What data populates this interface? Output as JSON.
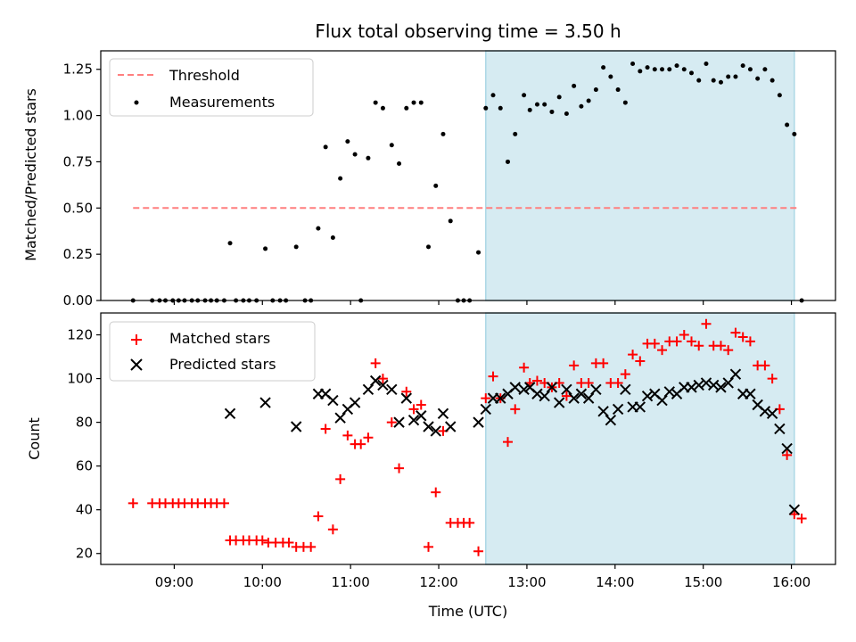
{
  "title": "Flux total observing time = 3.50 h",
  "chart_data": [
    {
      "type": "scatter",
      "ylabel": "Matched/Predicted stars",
      "ylim": [
        0,
        1.35
      ],
      "yticks": [
        "0.00",
        "0.25",
        "0.50",
        "0.75",
        "1.00",
        "1.25"
      ],
      "legend_position": "top-left",
      "threshold": {
        "name": "Threshold",
        "value": 0.5,
        "x_start": "08:32",
        "x_end": "16:05",
        "color": "#ff7f7f"
      },
      "measurements": {
        "name": "Measurements",
        "color": "#000000",
        "points": [
          [
            "08:32",
            0.0
          ],
          [
            "08:45",
            0.0
          ],
          [
            "08:50",
            0.0
          ],
          [
            "08:54",
            0.0
          ],
          [
            "08:59",
            0.0
          ],
          [
            "09:03",
            0.0
          ],
          [
            "09:07",
            0.0
          ],
          [
            "09:12",
            0.0
          ],
          [
            "09:16",
            0.0
          ],
          [
            "09:21",
            0.0
          ],
          [
            "09:25",
            0.0
          ],
          [
            "09:29",
            0.0
          ],
          [
            "09:34",
            0.0
          ],
          [
            "09:38",
            0.31
          ],
          [
            "09:42",
            0.0
          ],
          [
            "09:47",
            0.0
          ],
          [
            "09:51",
            0.0
          ],
          [
            "09:56",
            0.0
          ],
          [
            "10:02",
            0.28
          ],
          [
            "10:07",
            0.0
          ],
          [
            "10:12",
            0.0
          ],
          [
            "10:16",
            0.0
          ],
          [
            "10:23",
            0.29
          ],
          [
            "10:29",
            0.0
          ],
          [
            "10:33",
            0.0
          ],
          [
            "10:38",
            0.39
          ],
          [
            "10:43",
            0.83
          ],
          [
            "10:48",
            0.34
          ],
          [
            "10:53",
            0.66
          ],
          [
            "10:58",
            0.86
          ],
          [
            "11:03",
            0.79
          ],
          [
            "11:07",
            0.0
          ],
          [
            "11:12",
            0.77
          ],
          [
            "11:17",
            1.07
          ],
          [
            "11:22",
            1.04
          ],
          [
            "11:28",
            0.84
          ],
          [
            "11:33",
            0.74
          ],
          [
            "11:38",
            1.04
          ],
          [
            "11:43",
            1.07
          ],
          [
            "11:48",
            1.07
          ],
          [
            "11:53",
            0.29
          ],
          [
            "11:58",
            0.62
          ],
          [
            "12:03",
            0.9
          ],
          [
            "12:08",
            0.43
          ],
          [
            "12:13",
            0.0
          ],
          [
            "12:17",
            0.0
          ],
          [
            "12:21",
            0.0
          ],
          [
            "12:27",
            0.26
          ],
          [
            "12:32",
            1.04
          ],
          [
            "12:37",
            1.11
          ],
          [
            "12:42",
            1.04
          ],
          [
            "12:47",
            0.75
          ],
          [
            "12:52",
            0.9
          ],
          [
            "12:58",
            1.11
          ],
          [
            "13:02",
            1.03
          ],
          [
            "13:07",
            1.06
          ],
          [
            "13:12",
            1.06
          ],
          [
            "13:17",
            1.02
          ],
          [
            "13:22",
            1.1
          ],
          [
            "13:27",
            1.01
          ],
          [
            "13:32",
            1.16
          ],
          [
            "13:37",
            1.05
          ],
          [
            "13:42",
            1.08
          ],
          [
            "13:47",
            1.14
          ],
          [
            "13:52",
            1.26
          ],
          [
            "13:57",
            1.21
          ],
          [
            "14:02",
            1.14
          ],
          [
            "14:07",
            1.07
          ],
          [
            "14:12",
            1.28
          ],
          [
            "14:17",
            1.24
          ],
          [
            "14:22",
            1.26
          ],
          [
            "14:27",
            1.25
          ],
          [
            "14:32",
            1.25
          ],
          [
            "14:37",
            1.25
          ],
          [
            "14:42",
            1.27
          ],
          [
            "14:47",
            1.25
          ],
          [
            "14:52",
            1.23
          ],
          [
            "14:57",
            1.19
          ],
          [
            "15:02",
            1.28
          ],
          [
            "15:07",
            1.19
          ],
          [
            "15:12",
            1.18
          ],
          [
            "15:17",
            1.21
          ],
          [
            "15:22",
            1.21
          ],
          [
            "15:27",
            1.27
          ],
          [
            "15:32",
            1.25
          ],
          [
            "15:37",
            1.2
          ],
          [
            "15:42",
            1.25
          ],
          [
            "15:47",
            1.19
          ],
          [
            "15:52",
            1.11
          ],
          [
            "15:57",
            0.95
          ],
          [
            "16:02",
            0.9
          ],
          [
            "16:07",
            0.0
          ]
        ]
      },
      "highlight": {
        "start": "12:32",
        "end": "16:02",
        "color": "#add8e6"
      }
    },
    {
      "type": "scatter",
      "xlabel": "Time (UTC)",
      "ylabel": "Count",
      "ylim": [
        15,
        130
      ],
      "yticks": [
        "20",
        "40",
        "60",
        "80",
        "100",
        "120"
      ],
      "xticks": [
        "09:00",
        "10:00",
        "11:00",
        "12:00",
        "13:00",
        "14:00",
        "15:00",
        "16:00"
      ],
      "xlim": [
        "08:10",
        "16:30"
      ],
      "legend_position": "top-left",
      "series": [
        {
          "name": "Matched stars",
          "marker": "plus",
          "color": "#ff0000",
          "points": [
            [
              "08:32",
              43
            ],
            [
              "08:45",
              43
            ],
            [
              "08:50",
              43
            ],
            [
              "08:54",
              43
            ],
            [
              "08:59",
              43
            ],
            [
              "09:03",
              43
            ],
            [
              "09:07",
              43
            ],
            [
              "09:12",
              43
            ],
            [
              "09:16",
              43
            ],
            [
              "09:21",
              43
            ],
            [
              "09:25",
              43
            ],
            [
              "09:29",
              43
            ],
            [
              "09:34",
              43
            ],
            [
              "09:38",
              26
            ],
            [
              "09:42",
              26
            ],
            [
              "09:47",
              26
            ],
            [
              "09:51",
              26
            ],
            [
              "09:56",
              26
            ],
            [
              "10:00",
              26
            ],
            [
              "10:04",
              25
            ],
            [
              "10:09",
              25
            ],
            [
              "10:14",
              25
            ],
            [
              "10:18",
              25
            ],
            [
              "10:23",
              23
            ],
            [
              "10:28",
              23
            ],
            [
              "10:33",
              23
            ],
            [
              "10:38",
              37
            ],
            [
              "10:43",
              77
            ],
            [
              "10:48",
              31
            ],
            [
              "10:53",
              54
            ],
            [
              "10:58",
              74
            ],
            [
              "11:03",
              70
            ],
            [
              "11:07",
              70
            ],
            [
              "11:12",
              73
            ],
            [
              "11:17",
              107
            ],
            [
              "11:22",
              100
            ],
            [
              "11:28",
              80
            ],
            [
              "11:33",
              59
            ],
            [
              "11:38",
              94
            ],
            [
              "11:43",
              86
            ],
            [
              "11:48",
              88
            ],
            [
              "11:53",
              23
            ],
            [
              "11:58",
              48
            ],
            [
              "12:03",
              76
            ],
            [
              "12:08",
              34
            ],
            [
              "12:13",
              34
            ],
            [
              "12:17",
              34
            ],
            [
              "12:21",
              34
            ],
            [
              "12:27",
              21
            ],
            [
              "12:32",
              91
            ],
            [
              "12:37",
              101
            ],
            [
              "12:42",
              91
            ],
            [
              "12:47",
              71
            ],
            [
              "12:52",
              86
            ],
            [
              "12:58",
              105
            ],
            [
              "13:02",
              98
            ],
            [
              "13:07",
              99
            ],
            [
              "13:12",
              98
            ],
            [
              "13:17",
              96
            ],
            [
              "13:22",
              98
            ],
            [
              "13:27",
              92
            ],
            [
              "13:32",
              106
            ],
            [
              "13:37",
              98
            ],
            [
              "13:42",
              98
            ],
            [
              "13:47",
              107
            ],
            [
              "13:52",
              107
            ],
            [
              "13:57",
              98
            ],
            [
              "14:02",
              98
            ],
            [
              "14:07",
              102
            ],
            [
              "14:12",
              111
            ],
            [
              "14:17",
              108
            ],
            [
              "14:22",
              116
            ],
            [
              "14:27",
              116
            ],
            [
              "14:32",
              113
            ],
            [
              "14:37",
              117
            ],
            [
              "14:42",
              117
            ],
            [
              "14:47",
              120
            ],
            [
              "14:52",
              117
            ],
            [
              "14:57",
              115
            ],
            [
              "15:02",
              125
            ],
            [
              "15:07",
              115
            ],
            [
              "15:12",
              115
            ],
            [
              "15:17",
              113
            ],
            [
              "15:22",
              121
            ],
            [
              "15:27",
              119
            ],
            [
              "15:32",
              117
            ],
            [
              "15:37",
              106
            ],
            [
              "15:42",
              106
            ],
            [
              "15:47",
              100
            ],
            [
              "15:52",
              86
            ],
            [
              "15:57",
              65
            ],
            [
              "16:02",
              38
            ],
            [
              "16:07",
              36
            ]
          ]
        },
        {
          "name": "Predicted stars",
          "marker": "x",
          "color": "#000000",
          "points": [
            [
              "09:38",
              84
            ],
            [
              "10:02",
              89
            ],
            [
              "10:23",
              78
            ],
            [
              "10:38",
              93
            ],
            [
              "10:43",
              93
            ],
            [
              "10:48",
              90
            ],
            [
              "10:53",
              82
            ],
            [
              "10:58",
              86
            ],
            [
              "11:03",
              89
            ],
            [
              "11:12",
              95
            ],
            [
              "11:17",
              99
            ],
            [
              "11:22",
              97
            ],
            [
              "11:28",
              95
            ],
            [
              "11:33",
              80
            ],
            [
              "11:38",
              91
            ],
            [
              "11:43",
              81
            ],
            [
              "11:48",
              83
            ],
            [
              "11:53",
              78
            ],
            [
              "11:58",
              76
            ],
            [
              "12:03",
              84
            ],
            [
              "12:08",
              78
            ],
            [
              "12:27",
              80
            ],
            [
              "12:32",
              86
            ],
            [
              "12:37",
              91
            ],
            [
              "12:42",
              91
            ],
            [
              "12:47",
              93
            ],
            [
              "12:52",
              96
            ],
            [
              "12:58",
              95
            ],
            [
              "13:02",
              96
            ],
            [
              "13:07",
              93
            ],
            [
              "13:12",
              92
            ],
            [
              "13:17",
              96
            ],
            [
              "13:22",
              89
            ],
            [
              "13:27",
              95
            ],
            [
              "13:32",
              91
            ],
            [
              "13:37",
              93
            ],
            [
              "13:42",
              91
            ],
            [
              "13:47",
              95
            ],
            [
              "13:52",
              85
            ],
            [
              "13:57",
              81
            ],
            [
              "14:02",
              86
            ],
            [
              "14:07",
              95
            ],
            [
              "14:12",
              87
            ],
            [
              "14:17",
              87
            ],
            [
              "14:22",
              92
            ],
            [
              "14:27",
              93
            ],
            [
              "14:32",
              90
            ],
            [
              "14:37",
              94
            ],
            [
              "14:42",
              93
            ],
            [
              "14:47",
              96
            ],
            [
              "14:52",
              96
            ],
            [
              "14:57",
              97
            ],
            [
              "15:02",
              98
            ],
            [
              "15:07",
              97
            ],
            [
              "15:12",
              96
            ],
            [
              "15:17",
              98
            ],
            [
              "15:22",
              102
            ],
            [
              "15:27",
              93
            ],
            [
              "15:32",
              93
            ],
            [
              "15:37",
              88
            ],
            [
              "15:42",
              85
            ],
            [
              "15:47",
              84
            ],
            [
              "15:52",
              77
            ],
            [
              "15:57",
              68
            ],
            [
              "16:02",
              40
            ]
          ]
        }
      ],
      "highlight": {
        "start": "12:32",
        "end": "16:02",
        "color": "#add8e6"
      }
    }
  ]
}
